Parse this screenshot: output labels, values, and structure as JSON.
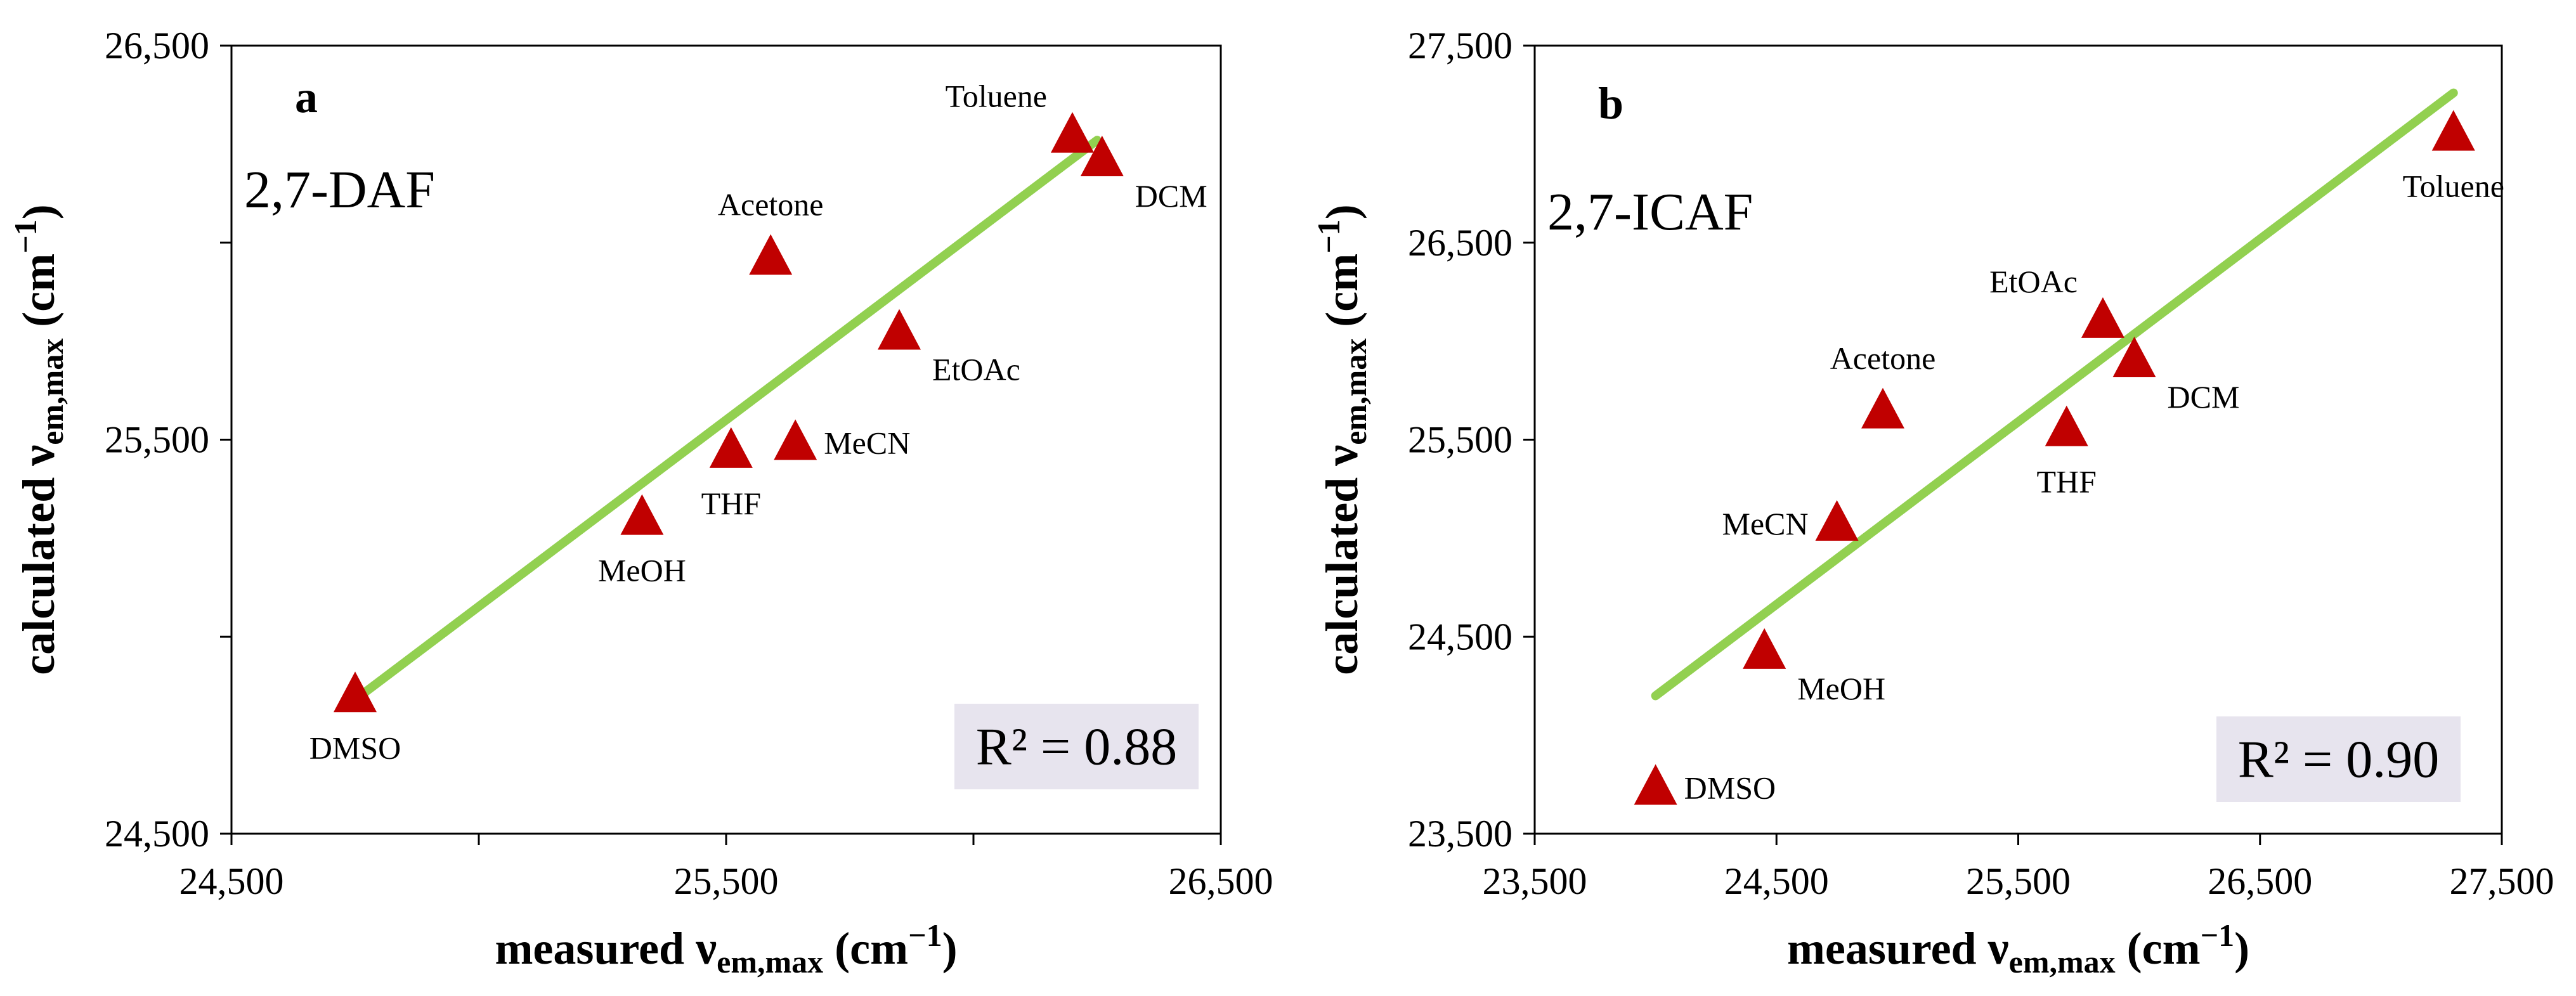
{
  "chart_data": [
    {
      "type": "scatter",
      "panel_letter": "a",
      "compound": "2,7-DAF",
      "r_squared": "R² = 0.88",
      "xlabel": "measured",
      "ylabel": "calculated",
      "nu_symbol": "ν",
      "sub": "em,max",
      "unit_open": " (cm",
      "unit_exp": "−1",
      "unit_close": ")",
      "xlim": [
        24500,
        26500
      ],
      "ylim": [
        24500,
        26500
      ],
      "xticks": [
        24500,
        25500,
        26500
      ],
      "yticks": [
        24500,
        25500,
        26500
      ],
      "xtick_labels": [
        "24,500",
        "25,500",
        "26,500"
      ],
      "ytick_labels": [
        "24,500",
        "25,500",
        "26,500"
      ],
      "xminor": [
        25000,
        26000
      ],
      "yminor": [
        25000,
        26000
      ],
      "marker_color": "#c00000",
      "line_color": "#92d050",
      "badge_color": "#e7e4ee",
      "fit_line": [
        [
          24750,
          24840
        ],
        [
          26250,
          26260
        ]
      ],
      "points": [
        {
          "label": "DMSO",
          "x": 24750,
          "y": 24860,
          "pos": "below"
        },
        {
          "label": "MeOH",
          "x": 25330,
          "y": 25310,
          "pos": "below"
        },
        {
          "label": "THF",
          "x": 25510,
          "y": 25480,
          "pos": "below"
        },
        {
          "label": "MeCN",
          "x": 25640,
          "y": 25500,
          "pos": "right"
        },
        {
          "label": "EtOAc",
          "x": 25850,
          "y": 25780,
          "pos": "below-right"
        },
        {
          "label": "Acetone",
          "x": 25590,
          "y": 25970,
          "pos": "above"
        },
        {
          "label": "Toluene",
          "x": 26200,
          "y": 26280,
          "pos": "above-left"
        },
        {
          "label": "DCM",
          "x": 26260,
          "y": 26220,
          "pos": "below-right"
        }
      ]
    },
    {
      "type": "scatter",
      "panel_letter": "b",
      "compound": "2,7-ICAF",
      "r_squared": "R² = 0.90",
      "xlabel": "measured",
      "ylabel": "calculated",
      "nu_symbol": "ν",
      "sub": "em,max",
      "unit_open": " (cm",
      "unit_exp": "−1",
      "unit_close": ")",
      "xlim": [
        23500,
        27500
      ],
      "ylim": [
        23500,
        27500
      ],
      "xticks": [
        23500,
        24500,
        25500,
        26500,
        27500
      ],
      "yticks": [
        23500,
        24500,
        25500,
        26500,
        27500
      ],
      "xtick_labels": [
        "23,500",
        "24,500",
        "25,500",
        "26,500",
        "27,500"
      ],
      "ytick_labels": [
        "23,500",
        "24,500",
        "25,500",
        "26,500",
        "27,500"
      ],
      "xminor": [],
      "yminor": [],
      "marker_color": "#c00000",
      "line_color": "#92d050",
      "badge_color": "#e7e4ee",
      "fit_line": [
        [
          24000,
          24200
        ],
        [
          27300,
          27260
        ]
      ],
      "points": [
        {
          "label": "DMSO",
          "x": 24000,
          "y": 23750,
          "pos": "right"
        },
        {
          "label": "MeOH",
          "x": 24450,
          "y": 24440,
          "pos": "below-right"
        },
        {
          "label": "MeCN",
          "x": 24750,
          "y": 25090,
          "pos": "left"
        },
        {
          "label": "Acetone",
          "x": 24940,
          "y": 25660,
          "pos": "above"
        },
        {
          "label": "THF",
          "x": 25700,
          "y": 25570,
          "pos": "below"
        },
        {
          "label": "EtOAc",
          "x": 25850,
          "y": 26120,
          "pos": "above-left"
        },
        {
          "label": "DCM",
          "x": 25980,
          "y": 25920,
          "pos": "below-right"
        },
        {
          "label": "Toluene",
          "x": 27300,
          "y": 27070,
          "pos": "below"
        }
      ]
    }
  ]
}
